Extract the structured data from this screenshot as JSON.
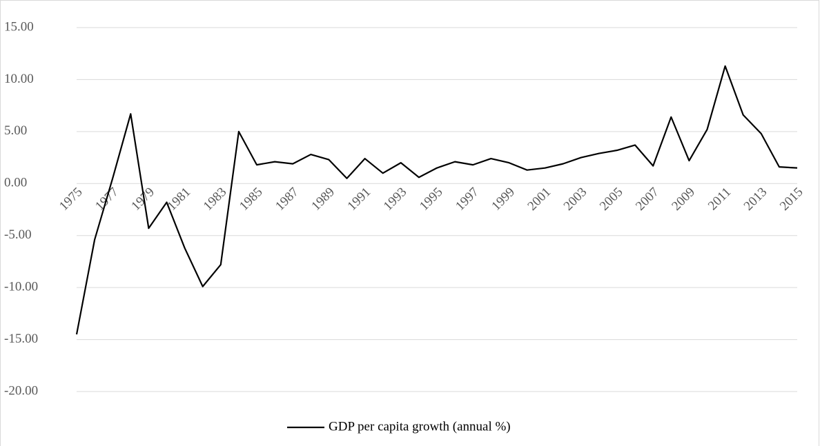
{
  "chart_data": {
    "type": "line",
    "categories": [
      "1975",
      null,
      "1977",
      null,
      "1979",
      null,
      "1981",
      null,
      "1983",
      null,
      "1985",
      null,
      "1987",
      null,
      "1989",
      null,
      "1991",
      null,
      "1993",
      null,
      "1995",
      null,
      "1997",
      null,
      "1999",
      null,
      "2001",
      null,
      "2003",
      null,
      "2005",
      null,
      "2007",
      null,
      "2009",
      null,
      "2011",
      null,
      "2013",
      null,
      "2015"
    ],
    "series": [
      {
        "name": "GDP per capita growth (annual %)",
        "color": "#000000",
        "values": [
          -14.5,
          -5.4,
          0.5,
          6.7,
          -4.3,
          -1.8,
          -6.2,
          -9.9,
          -7.8,
          5.0,
          1.8,
          2.1,
          1.9,
          2.8,
          2.3,
          0.5,
          2.4,
          1.0,
          2.0,
          0.6,
          1.5,
          2.1,
          1.8,
          2.4,
          2.0,
          1.3,
          1.5,
          1.9,
          2.5,
          2.9,
          3.2,
          3.7,
          1.7,
          6.4,
          2.2,
          5.2,
          11.3,
          6.6,
          4.8,
          1.6,
          1.5
        ]
      }
    ],
    "ylim": [
      -20,
      15
    ],
    "yticks": [
      {
        "value": -20,
        "label": "-20.00"
      },
      {
        "value": -15,
        "label": "-15.00"
      },
      {
        "value": -10,
        "label": "-10.00"
      },
      {
        "value": -5,
        "label": "-5.00"
      },
      {
        "value": 0,
        "label": "0.00"
      },
      {
        "value": 5,
        "label": "5.00"
      },
      {
        "value": 10,
        "label": "10.00"
      },
      {
        "value": 15,
        "label": "15.00"
      }
    ],
    "grid": true,
    "legend": "bottom"
  }
}
